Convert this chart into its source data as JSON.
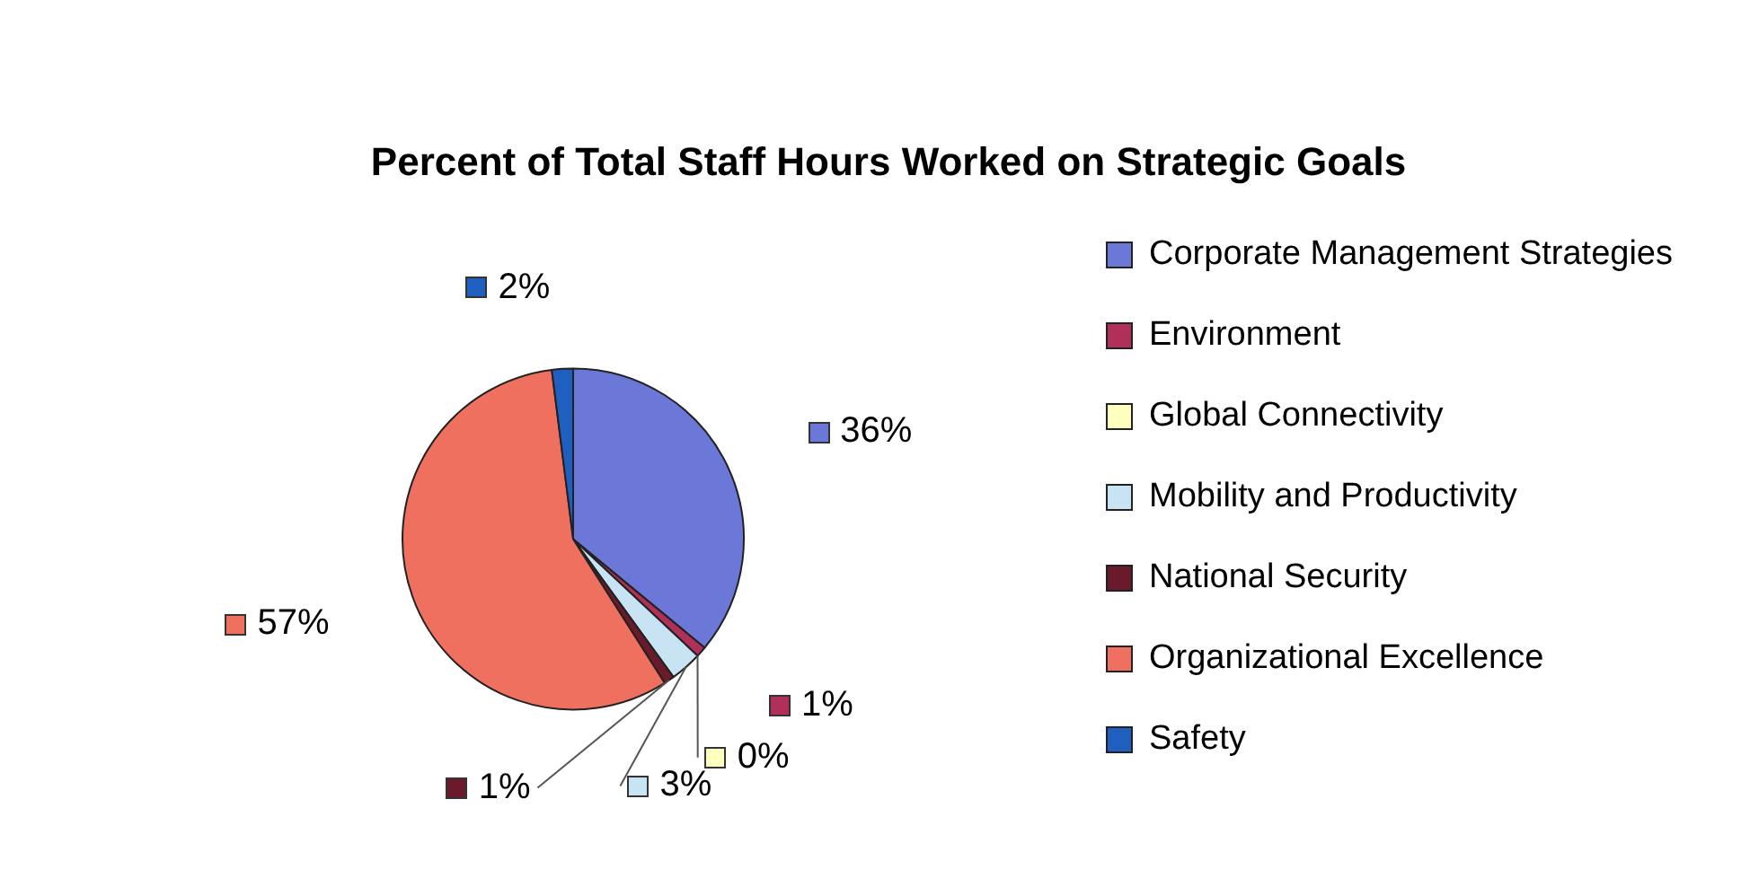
{
  "chart_data": {
    "type": "pie",
    "title": "Percent of Total Staff Hours Worked on Strategic Goals",
    "categories": [
      "Corporate Management Strategies",
      "Environment",
      "Global Connectivity",
      "Mobility and Productivity",
      "National Security",
      "Organizational Excellence",
      "Safety"
    ],
    "values": [
      36,
      1,
      0,
      3,
      1,
      57,
      2
    ],
    "value_labels": [
      "36%",
      "1%",
      "0%",
      "3%",
      "1%",
      "57%",
      "2%"
    ],
    "colors": [
      "#6b78d8",
      "#b0305a",
      "#ffffc0",
      "#c8e4f4",
      "#6a1a2a",
      "#f07060",
      "#1f5fbf"
    ],
    "legend": "right"
  }
}
